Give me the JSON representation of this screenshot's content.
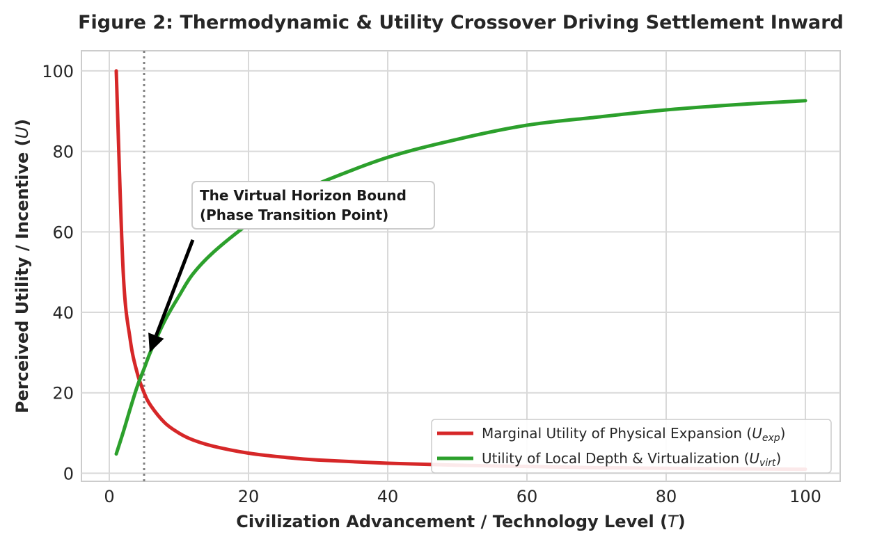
{
  "chart_data": {
    "type": "line",
    "title": "Figure 2: Thermodynamic & Utility Crossover Driving Settlement Inward",
    "xlabel": "Civilization Advancement / Technology Level",
    "xlabel_symbol": "T",
    "ylabel": "Perceived Utility / Incentive",
    "ylabel_symbol": "U",
    "xlim": [
      -4,
      105
    ],
    "ylim": [
      -2,
      105
    ],
    "x_ticks": [
      "0",
      "20",
      "40",
      "60",
      "80",
      "100"
    ],
    "y_ticks": [
      "0",
      "20",
      "40",
      "60",
      "80",
      "100"
    ],
    "grid": true,
    "legend_position": "lower-right",
    "x": [
      1,
      2,
      3,
      4,
      5,
      6,
      8,
      10,
      12,
      15,
      20,
      25,
      30,
      40,
      50,
      60,
      70,
      80,
      90,
      100
    ],
    "series": [
      {
        "name": "Marginal Utility of Physical Expansion",
        "symbol": "U",
        "subscript": "exp",
        "color": "#d62728",
        "values": [
          100,
          50,
          33.3,
          25,
          20,
          16.7,
          12.5,
          10,
          8.3,
          6.7,
          5,
          4,
          3.3,
          2.5,
          2,
          1.7,
          1.4,
          1.25,
          1.1,
          1
        ]
      },
      {
        "name": "Utility of Local Depth & Virtualization",
        "symbol": "U",
        "subscript": "virt",
        "color": "#2ca02c",
        "values": [
          4.8,
          10.2,
          16,
          21.5,
          26,
          30.5,
          38,
          44,
          49.5,
          55,
          62,
          68,
          72,
          78.5,
          83,
          86.5,
          88.5,
          90.3,
          91.6,
          92.6
        ]
      }
    ],
    "vline": {
      "x": 5,
      "style": "dotted",
      "color": "#808080"
    },
    "annotation": {
      "lines": [
        "The Virtual Horizon Bound",
        "(Phase Transition Point)"
      ],
      "arrow_from": [
        12,
        58
      ],
      "arrow_to": [
        5.8,
        30
      ]
    }
  }
}
